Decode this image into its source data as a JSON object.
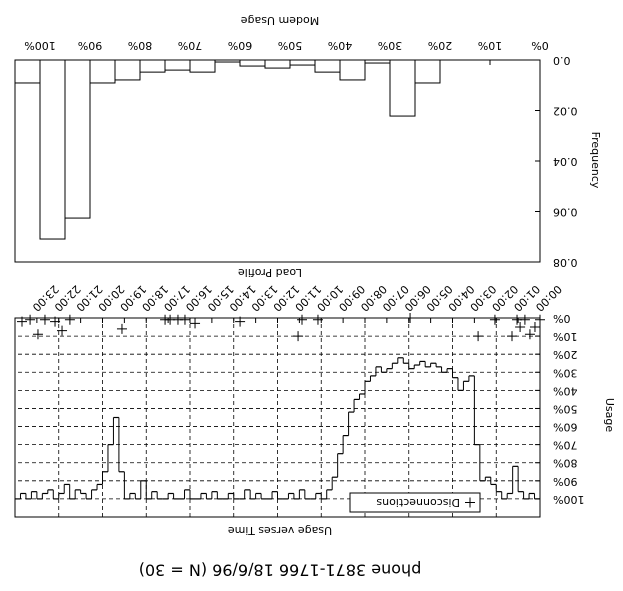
{
  "title": "phone 3871-1766 18/6/96 (N = 30)",
  "chart_data": [
    {
      "type": "line",
      "title": "Usage verses Time",
      "ylabel": "Usage",
      "xlim": [
        0,
        24
      ],
      "xticks": [
        {
          "value": 0,
          "label": "00:00"
        },
        {
          "value": 1,
          "label": "01:00"
        },
        {
          "value": 2,
          "label": "02:00"
        },
        {
          "value": 3,
          "label": "03:00"
        },
        {
          "value": 4,
          "label": "04:00"
        },
        {
          "value": 5,
          "label": "05:00"
        },
        {
          "value": 6,
          "label": "06:00"
        },
        {
          "value": 7,
          "label": "07:00"
        },
        {
          "value": 8,
          "label": "08:00"
        },
        {
          "value": 9,
          "label": "09:00"
        },
        {
          "value": 10,
          "label": "10:00"
        },
        {
          "value": 11,
          "label": "11:00"
        },
        {
          "value": 12,
          "label": "12:00"
        },
        {
          "value": 13,
          "label": "13:00"
        },
        {
          "value": 14,
          "label": "14:00"
        },
        {
          "value": 15,
          "label": "15:00"
        },
        {
          "value": 16,
          "label": "16:00"
        },
        {
          "value": 17,
          "label": "17:00"
        },
        {
          "value": 18,
          "label": "18:00"
        },
        {
          "value": 19,
          "label": "19:00"
        },
        {
          "value": 20,
          "label": "20:00"
        },
        {
          "value": 21,
          "label": "21:00"
        },
        {
          "value": 22,
          "label": "22:00"
        },
        {
          "value": 23,
          "label": "23:00"
        }
      ],
      "ylim": [
        0,
        110
      ],
      "yticks": [
        {
          "value": 0,
          "label": "0%"
        },
        {
          "value": 10,
          "label": "10%"
        },
        {
          "value": 20,
          "label": "20%"
        },
        {
          "value": 30,
          "label": "30%"
        },
        {
          "value": 40,
          "label": "40%"
        },
        {
          "value": 50,
          "label": "50%"
        },
        {
          "value": 60,
          "label": "60%"
        },
        {
          "value": 70,
          "label": "70%"
        },
        {
          "value": 80,
          "label": "80%"
        },
        {
          "value": 90,
          "label": "90%"
        },
        {
          "value": 100,
          "label": "100%"
        }
      ],
      "grid": true,
      "legend": "upper left",
      "series": [
        {
          "type": "step",
          "color": "#000000",
          "x": [
            0,
            0.25,
            0.5,
            0.75,
            1,
            1.25,
            1.5,
            1.75,
            2,
            2.25,
            2.5,
            2.75,
            3,
            3.25,
            3.5,
            3.75,
            4,
            4.25,
            4.5,
            4.75,
            5,
            5.25,
            5.5,
            5.75,
            6,
            6.25,
            6.5,
            6.75,
            7,
            7.25,
            7.5,
            7.75,
            8,
            8.25,
            8.5,
            8.75,
            9,
            9.25,
            9.5,
            9.75,
            10,
            10.25,
            10.5,
            10.75,
            11,
            11.25,
            11.5,
            11.75,
            12,
            12.25,
            12.5,
            12.75,
            13,
            13.25,
            13.5,
            13.75,
            14,
            14.25,
            14.5,
            14.75,
            15,
            15.25,
            15.5,
            15.75,
            16,
            16.25,
            16.5,
            16.75,
            17,
            17.25,
            17.5,
            17.75,
            18,
            18.25,
            18.5,
            18.75,
            19,
            19.25,
            19.5,
            19.75,
            20,
            20.25,
            20.5,
            20.75,
            21,
            21.25,
            21.5,
            21.75,
            22,
            22.25,
            22.5,
            22.75,
            23,
            23.25,
            23.5,
            23.75
          ],
          "values": [
            100,
            97,
            100,
            96,
            82,
            97,
            100,
            96,
            92,
            88,
            90,
            70,
            32,
            35,
            40,
            33,
            28,
            30,
            27,
            25,
            27,
            24,
            26,
            28,
            25,
            22,
            25,
            28,
            30,
            27,
            32,
            35,
            42,
            45,
            52,
            65,
            75,
            88,
            95,
            100,
            97,
            100,
            100,
            95,
            100,
            97,
            100,
            100,
            96,
            100,
            100,
            97,
            100,
            95,
            100,
            100,
            97,
            100,
            100,
            96,
            100,
            97,
            100,
            100,
            95,
            100,
            100,
            97,
            100,
            100,
            96,
            100,
            90,
            100,
            97,
            100,
            85,
            55,
            70,
            85,
            92,
            95,
            100,
            97,
            95,
            100,
            92,
            97,
            100,
            95,
            97,
            100,
            96,
            100,
            97,
            100
          ]
        },
        {
          "type": "scatter",
          "name": "Disconnections",
          "marker": "+",
          "color": "#000000",
          "x": [
            0,
            0.23,
            0.46,
            0.69,
            0.91,
            1.05,
            1.28,
            2.06,
            2.83,
            5.94,
            10.15,
            10.88,
            11.06,
            13.71,
            15.77,
            16.23,
            16.55,
            16.91,
            17.14,
            19.11,
            21.49,
            21.85,
            22.17,
            22.63,
            22.95,
            23.31,
            23.68
          ],
          "values": [
            1,
            5,
            9,
            1,
            5,
            1,
            10,
            1,
            10,
            0,
            1,
            1,
            10,
            2,
            3,
            1,
            1,
            1,
            1,
            6,
            1,
            7,
            2,
            1,
            9,
            1,
            2
          ]
        }
      ]
    },
    {
      "type": "histogram",
      "title": "Load Profile",
      "xlabel": "Modem Usage",
      "ylabel": "Frequency",
      "bins": [
        0,
        5,
        10,
        15,
        20,
        25,
        30,
        35,
        40,
        45,
        50,
        55,
        60,
        65,
        70,
        75,
        80,
        85,
        90,
        95,
        100,
        105
      ],
      "values": [
        0,
        0,
        0,
        0,
        0.0091,
        0.0222,
        0.0012,
        0.0079,
        0.0048,
        0.002,
        0.0032,
        0.0024,
        0.0008,
        0.0048,
        0.004,
        0.0048,
        0.0079,
        0.0091,
        0.0626,
        0.0709,
        0.0091
      ],
      "color": "#ffffff",
      "edgecolor": "#000000",
      "xlim": [
        0,
        105
      ],
      "xticks": [
        {
          "value": 0,
          "label": "0%"
        },
        {
          "value": 10,
          "label": "10%"
        },
        {
          "value": 20,
          "label": "20%"
        },
        {
          "value": 30,
          "label": "30%"
        },
        {
          "value": 40,
          "label": "40%"
        },
        {
          "value": 50,
          "label": "50%"
        },
        {
          "value": 60,
          "label": "60%"
        },
        {
          "value": 70,
          "label": "70%"
        },
        {
          "value": 80,
          "label": "80%"
        },
        {
          "value": 90,
          "label": "90%"
        },
        {
          "value": 100,
          "label": "100%"
        }
      ],
      "ylim": [
        0,
        0.08
      ],
      "yticks": [
        {
          "value": 0,
          "label": "0.0"
        },
        0.02,
        0.04,
        0.06,
        0.08
      ]
    }
  ]
}
